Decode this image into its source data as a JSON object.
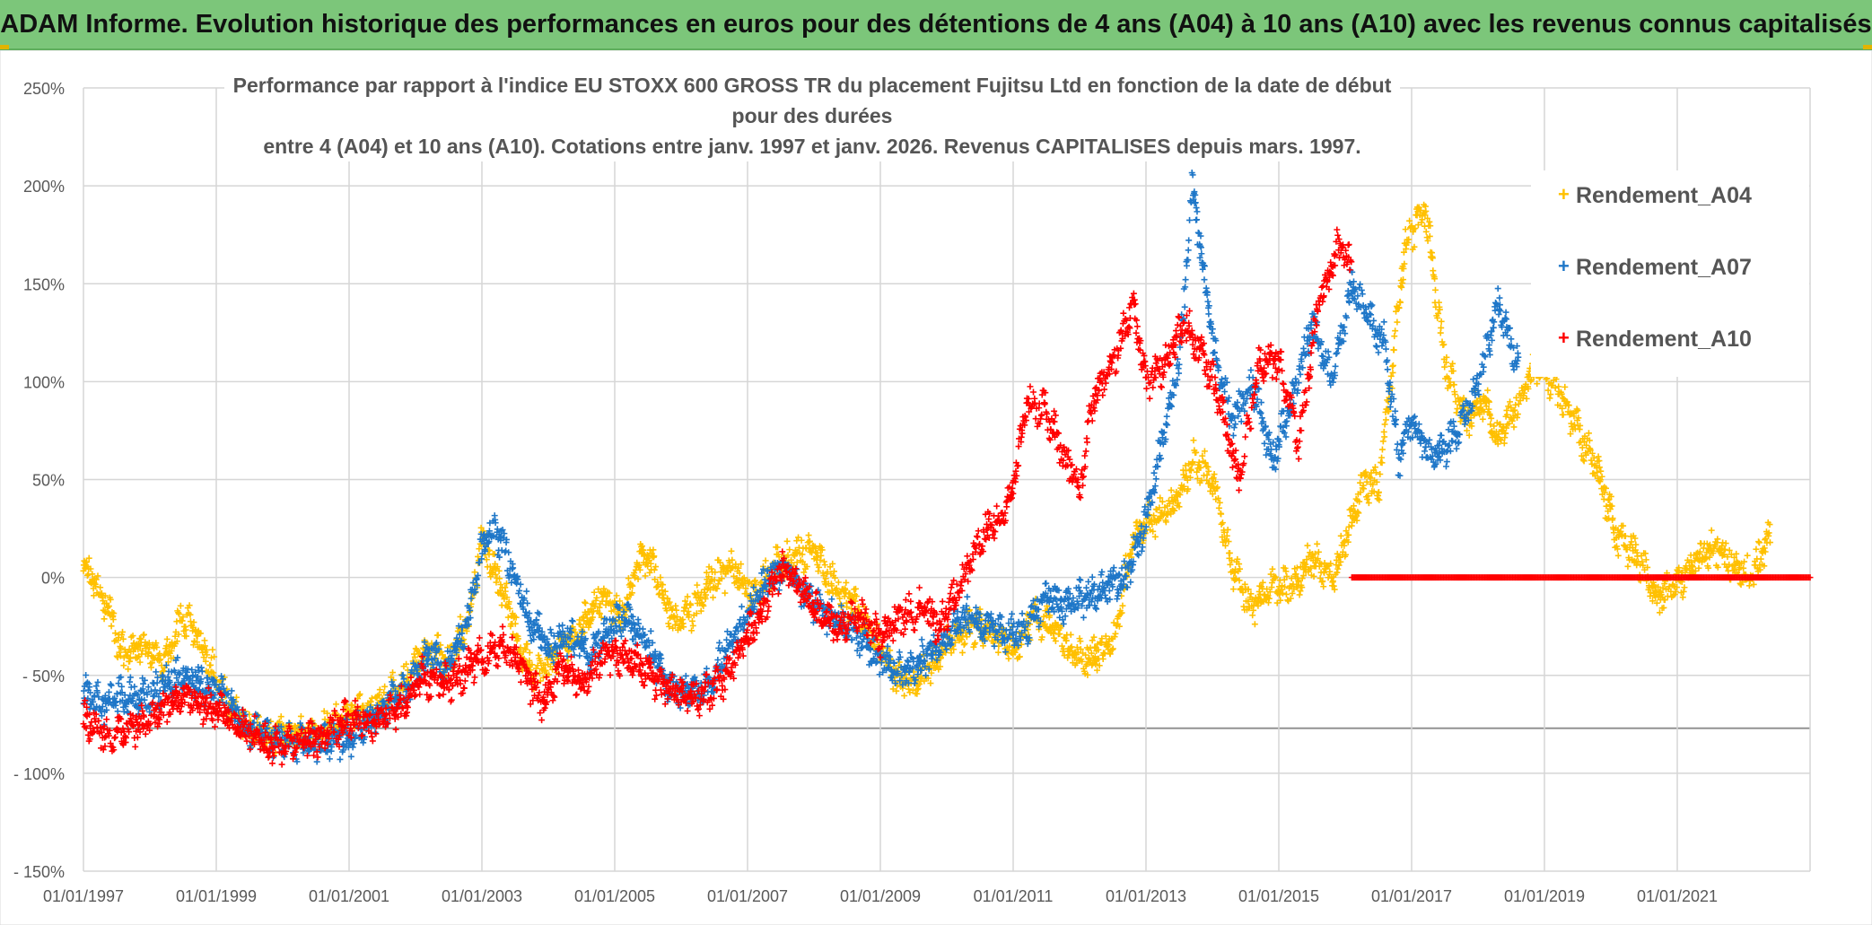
{
  "header": {
    "title": "ADAM Informe. Evolution historique des performances en euros pour des détentions de 4 ans (A04) à 10 ans (A10) avec les revenus connus capitalisés"
  },
  "colors": {
    "A04": "#FFC000",
    "A07": "#1F77C8",
    "A10": "#FF0000",
    "banner": "#7CC67A"
  },
  "chart_data": {
    "type": "scatter",
    "title_line1": "Performance par rapport à l'indice EU STOXX 600 GROSS TR  du placement Fujitsu Ltd en fonction de la date de début pour des durées",
    "title_line2": "entre 4 (A04) et 10 ans (A10). Cotations entre janv. 1997 et janv. 2026. Revenus CAPITALISES depuis mars. 1997.",
    "xlabel": "",
    "ylabel": "",
    "xlim": [
      1997.0,
      2023.0
    ],
    "ylim": [
      -150,
      250
    ],
    "y_ticks": [
      250,
      200,
      150,
      100,
      50,
      0,
      -50,
      -100,
      -150
    ],
    "y_tick_labels": [
      "250%",
      "200%",
      "150%",
      "100%",
      "50%",
      "0%",
      "- 50%",
      "- 100%",
      "- 150%"
    ],
    "x_ticks": [
      1997,
      1999,
      2001,
      2003,
      2005,
      2007,
      2009,
      2011,
      2013,
      2015,
      2017,
      2019,
      2021
    ],
    "x_tick_labels": [
      "01/01/1997",
      "01/01/1999",
      "01/01/2001",
      "01/01/2003",
      "01/01/2005",
      "01/01/2007",
      "01/01/2009",
      "01/01/2011",
      "01/01/2013",
      "01/01/2015",
      "01/01/2017",
      "01/01/2019",
      "01/01/2021"
    ],
    "grid": true,
    "legend_position": "top-right",
    "marker": "+",
    "series": [
      {
        "name": "Rendement_A04",
        "x": [
          1997.0,
          1997.3,
          1997.6,
          1997.9,
          1998.2,
          1998.5,
          1998.8,
          1999.1,
          1999.4,
          1999.8,
          2000.2,
          2000.6,
          2001.0,
          2001.4,
          2001.8,
          2002.2,
          2002.5,
          2002.8,
          2003.0,
          2003.3,
          2003.6,
          2003.9,
          2004.2,
          2004.5,
          2004.8,
          2005.1,
          2005.4,
          2005.6,
          2005.9,
          2006.2,
          2006.5,
          2006.8,
          2007.1,
          2007.4,
          2007.7,
          2008.0,
          2008.3,
          2008.6,
          2008.9,
          2009.2,
          2009.5,
          2009.8,
          2010.1,
          2010.4,
          2010.7,
          2011.0,
          2011.3,
          2011.6,
          2011.9,
          2012.2,
          2012.5,
          2012.8,
          2013.1,
          2013.4,
          2013.7,
          2014.0,
          2014.3,
          2014.6,
          2014.9,
          2015.2,
          2015.5,
          2015.8,
          2016.1,
          2016.3,
          2016.5,
          2016.7,
          2016.9,
          2017.2,
          2017.5,
          2017.8,
          2018.1,
          2018.3,
          2018.6,
          2018.9,
          2019.2,
          2019.5,
          2019.8,
          2020.1,
          2020.4,
          2020.7,
          2021.0,
          2021.3,
          2021.6,
          2021.9,
          2022.1,
          2022.4
        ],
        "y": [
          5,
          -10,
          -40,
          -35,
          -45,
          -20,
          -35,
          -60,
          -75,
          -82,
          -80,
          -78,
          -70,
          -65,
          -55,
          -35,
          -45,
          -20,
          20,
          -5,
          -40,
          -50,
          -35,
          -25,
          -10,
          -20,
          10,
          5,
          -25,
          -15,
          0,
          5,
          -10,
          5,
          10,
          15,
          -5,
          -15,
          -30,
          -50,
          -55,
          -45,
          -30,
          -25,
          -30,
          -35,
          -20,
          -25,
          -40,
          -40,
          -35,
          20,
          30,
          35,
          60,
          50,
          5,
          -15,
          -5,
          -5,
          10,
          0,
          30,
          50,
          45,
          105,
          170,
          190,
          110,
          80,
          90,
          70,
          90,
          110,
          95,
          75,
          55,
          20,
          10,
          -10,
          -5,
          10,
          15,
          5,
          0,
          20
        ],
        "range_end": 2022.5
      },
      {
        "name": "Rendement_A07",
        "x": [
          1997.0,
          1997.3,
          1997.6,
          1997.9,
          1998.2,
          1998.5,
          1998.8,
          1999.1,
          1999.4,
          1999.8,
          2000.2,
          2000.6,
          2001.0,
          2001.4,
          2001.8,
          2002.2,
          2002.5,
          2002.8,
          2003.0,
          2003.2,
          2003.4,
          2003.7,
          2004.0,
          2004.3,
          2004.6,
          2004.9,
          2005.2,
          2005.5,
          2005.8,
          2006.1,
          2006.4,
          2006.7,
          2007.0,
          2007.3,
          2007.6,
          2007.9,
          2008.2,
          2008.5,
          2008.8,
          2009.1,
          2009.4,
          2009.7,
          2010.0,
          2010.3,
          2010.6,
          2010.9,
          2011.2,
          2011.5,
          2011.8,
          2012.1,
          2012.4,
          2012.7,
          2013.0,
          2013.3,
          2013.5,
          2013.7,
          2014.0,
          2014.3,
          2014.6,
          2014.9,
          2015.2,
          2015.5,
          2015.8,
          2016.1,
          2016.4,
          2016.6,
          2016.8,
          2017.0,
          2017.3,
          2017.6,
          2017.9,
          2018.1,
          2018.3,
          2018.6
        ],
        "y": [
          -58,
          -65,
          -60,
          -62,
          -55,
          -50,
          -55,
          -60,
          -75,
          -82,
          -85,
          -84,
          -82,
          -70,
          -60,
          -40,
          -45,
          -20,
          15,
          25,
          10,
          -20,
          -35,
          -30,
          -40,
          -25,
          -20,
          -35,
          -55,
          -60,
          -55,
          -35,
          -20,
          0,
          5,
          -10,
          -20,
          -25,
          -35,
          -45,
          -50,
          -40,
          -30,
          -20,
          -25,
          -30,
          -25,
          -10,
          -15,
          -10,
          -5,
          0,
          30,
          80,
          110,
          200,
          120,
          80,
          100,
          60,
          90,
          130,
          100,
          150,
          130,
          120,
          60,
          80,
          60,
          70,
          90,
          110,
          140,
          110
        ],
        "range_end": 2018.7
      },
      {
        "name": "Rendement_A10",
        "x": [
          1997.0,
          1997.3,
          1997.6,
          1997.9,
          1998.2,
          1998.5,
          1998.8,
          1999.1,
          1999.4,
          1999.8,
          2000.2,
          2000.6,
          2001.0,
          2001.4,
          2001.8,
          2002.1,
          2002.4,
          2002.7,
          2003.0,
          2003.3,
          2003.6,
          2003.9,
          2004.2,
          2004.5,
          2004.8,
          2005.1,
          2005.4,
          2005.7,
          2006.0,
          2006.3,
          2006.6,
          2006.9,
          2007.2,
          2007.5,
          2007.8,
          2008.1,
          2008.4,
          2008.7,
          2009.0,
          2009.3,
          2009.6,
          2009.9,
          2010.2,
          2010.5,
          2010.8,
          2011.0,
          2011.2,
          2011.5,
          2011.8,
          2012.0,
          2012.2,
          2012.5,
          2012.8,
          2013.0,
          2013.3,
          2013.6,
          2013.9,
          2014.1,
          2014.4,
          2014.7,
          2015.0,
          2015.3,
          2015.6,
          2015.9,
          2016.1
        ],
        "y": [
          -72,
          -80,
          -78,
          -75,
          -68,
          -60,
          -65,
          -68,
          -78,
          -85,
          -85,
          -82,
          -72,
          -75,
          -65,
          -50,
          -55,
          -50,
          -40,
          -35,
          -45,
          -65,
          -45,
          -55,
          -40,
          -40,
          -45,
          -55,
          -60,
          -60,
          -55,
          -35,
          -20,
          5,
          -5,
          -20,
          -25,
          -20,
          -30,
          -20,
          -15,
          -25,
          -5,
          20,
          30,
          45,
          90,
          85,
          60,
          45,
          90,
          110,
          140,
          100,
          110,
          130,
          110,
          90,
          50,
          110,
          110,
          70,
          140,
          170,
          160
        ],
        "constant_segment": {
          "x_from": 2016.1,
          "x_to": 2023.0,
          "y": 0
        },
        "range_end": 2023.0
      }
    ]
  }
}
